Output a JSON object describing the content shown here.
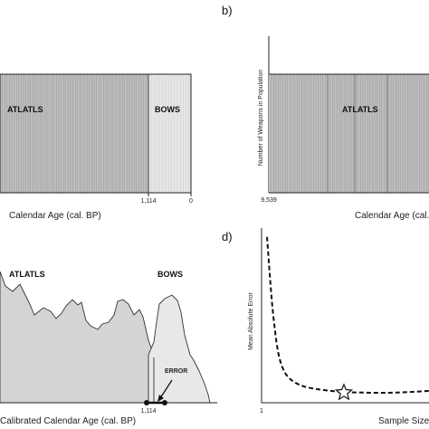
{
  "chart_data": [
    {
      "type": "bar",
      "panel_letter": "",
      "xlabel": "Calendar Age (cal. BP)",
      "ylabel": "",
      "x_ticks": [
        "1,114",
        "0"
      ],
      "regions": [
        {
          "label": "ATLATLS",
          "fill": "#bdbdbd"
        },
        {
          "label": "BOWS",
          "fill": "#e6e6e6"
        }
      ]
    },
    {
      "type": "bar",
      "panel_letter": "b)",
      "xlabel": "Calendar Age (cal. BP)",
      "ylabel": "Number of Weapons in Population",
      "x_ticks": [
        "9,539"
      ],
      "regions": [
        {
          "label": "ATLATLS",
          "fill": "#bdbdbd"
        }
      ]
    },
    {
      "type": "area",
      "panel_letter": "",
      "xlabel": "Calibrated Calendar Age (cal. BP)",
      "ylabel": "",
      "x_ticks": [
        "1,114"
      ],
      "regions": [
        {
          "label": "ATLATLS",
          "fill": "#d4d4d4"
        },
        {
          "label": "BOWS",
          "fill": "#e8e8e8"
        }
      ],
      "annotation": "ERROR"
    },
    {
      "type": "line",
      "panel_letter": "d)",
      "xlabel": "Sample Size",
      "ylabel": "Mean Absolute Error",
      "x_ticks": [
        "1"
      ],
      "curve": {
        "x": [
          1,
          5,
          10,
          20,
          40,
          60,
          80,
          100
        ],
        "y": [
          0.98,
          0.5,
          0.22,
          0.11,
          0.07,
          0.06,
          0.06,
          0.07
        ]
      },
      "marker": {
        "shape": "star",
        "x": 48,
        "y": 0.06
      },
      "xlim": [
        1,
        100
      ],
      "ylim": [
        0,
        1
      ]
    }
  ]
}
